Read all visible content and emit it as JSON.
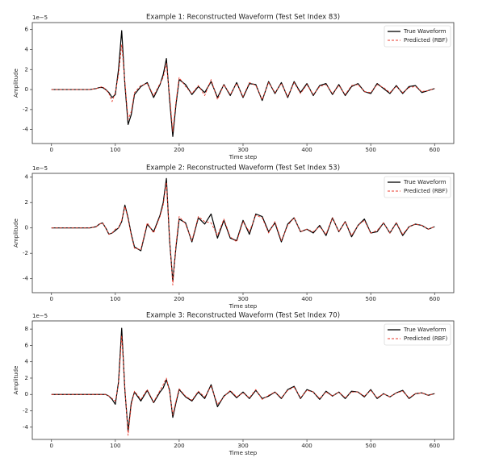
{
  "chart_data": [
    {
      "type": "line",
      "title": "Example 1: Reconstructed Waveform (Test Set Index 83)",
      "x_label": "Time step",
      "y_label": "Amplitude",
      "y_offset_label": "1e−5",
      "legend": "upper right",
      "x": [
        0,
        20,
        40,
        60,
        70,
        75,
        80,
        85,
        90,
        95,
        100,
        105,
        110,
        115,
        120,
        125,
        130,
        140,
        150,
        160,
        170,
        175,
        180,
        185,
        190,
        195,
        200,
        210,
        220,
        230,
        240,
        250,
        260,
        270,
        280,
        290,
        300,
        310,
        320,
        330,
        340,
        350,
        360,
        370,
        380,
        390,
        400,
        410,
        420,
        430,
        440,
        450,
        460,
        470,
        480,
        490,
        500,
        510,
        520,
        530,
        540,
        550,
        560,
        570,
        580,
        590,
        600
      ],
      "xlim": [
        -30,
        630
      ],
      "xticks": [
        0,
        100,
        200,
        300,
        400,
        500,
        600
      ],
      "ylim": [
        -5.4,
        6.7
      ],
      "yticks": [
        -4,
        -2,
        0,
        2,
        4,
        6
      ],
      "series": [
        {
          "name": "True Waveform",
          "color": "#000000",
          "dash": false,
          "values": [
            0,
            0,
            0,
            0,
            0.1,
            0.2,
            0.2,
            0,
            -0.3,
            -0.8,
            -0.5,
            2,
            5.9,
            0.5,
            -3.5,
            -2.5,
            -0.5,
            0.3,
            0.7,
            -0.8,
            0.5,
            1.5,
            3.1,
            -1,
            -4.7,
            -1.5,
            1,
            0.5,
            -0.5,
            0.3,
            -0.3,
            0.8,
            -0.8,
            0.5,
            -0.6,
            0.7,
            -0.8,
            0.6,
            0.5,
            -1.1,
            0.8,
            -0.4,
            0.7,
            -0.8,
            0.8,
            -0.3,
            0.6,
            -0.6,
            0.4,
            0.6,
            -0.5,
            0.5,
            -0.6,
            0.3,
            0.6,
            -0.2,
            -0.4,
            0.6,
            0.1,
            -0.4,
            0.4,
            -0.4,
            0.3,
            0.4,
            -0.3,
            -0.1,
            0.1
          ]
        },
        {
          "name": "Predicted (RBF)",
          "color": "#e8392b",
          "dash": true,
          "values": [
            0,
            0,
            0,
            0,
            0.1,
            0.2,
            0.3,
            0,
            -0.4,
            -1.2,
            -0.3,
            1.5,
            4.5,
            0.8,
            -3,
            -2.2,
            -0.3,
            0.4,
            0.6,
            -0.6,
            0.6,
            1.2,
            2.6,
            -0.6,
            -4.2,
            -1.2,
            1.2,
            0.3,
            -0.4,
            0.4,
            -0.6,
            1,
            -1,
            0.5,
            -0.5,
            0.6,
            -0.7,
            0.7,
            0.4,
            -1,
            0.7,
            -0.3,
            0.6,
            -0.7,
            0.7,
            -0.4,
            0.5,
            -0.5,
            0.3,
            0.5,
            -0.4,
            0.4,
            -0.5,
            0.4,
            0.5,
            -0.2,
            -0.3,
            0.5,
            0.2,
            -0.3,
            0.3,
            -0.3,
            0.2,
            0.3,
            -0.2,
            -0.1,
            0.1
          ]
        }
      ]
    },
    {
      "type": "line",
      "title": "Example 2: Reconstructed Waveform (Test Set Index 53)",
      "x_label": "Time step",
      "y_label": "Amplitude",
      "y_offset_label": "1e−5",
      "legend": "upper right",
      "x": [
        0,
        20,
        40,
        60,
        70,
        75,
        80,
        85,
        90,
        95,
        100,
        105,
        110,
        115,
        120,
        125,
        130,
        140,
        150,
        160,
        170,
        175,
        180,
        185,
        190,
        195,
        200,
        210,
        220,
        230,
        240,
        250,
        260,
        270,
        280,
        290,
        300,
        310,
        320,
        330,
        340,
        350,
        360,
        370,
        380,
        390,
        400,
        410,
        420,
        430,
        440,
        450,
        460,
        470,
        480,
        490,
        500,
        510,
        520,
        530,
        540,
        550,
        560,
        570,
        580,
        590,
        600
      ],
      "xlim": [
        -30,
        630
      ],
      "xticks": [
        0,
        100,
        200,
        300,
        400,
        500,
        600
      ],
      "ylim": [
        -5.1,
        4.3
      ],
      "yticks": [
        -4,
        -2,
        0,
        2,
        4
      ],
      "series": [
        {
          "name": "True Waveform",
          "color": "#000000",
          "dash": false,
          "values": [
            0,
            0,
            0,
            0,
            0.1,
            0.3,
            0.4,
            0,
            -0.5,
            -0.4,
            -0.2,
            0,
            0.5,
            1.8,
            0.8,
            -0.5,
            -1.5,
            -1.8,
            0.3,
            -0.3,
            1,
            2,
            3.9,
            -1,
            -4.2,
            -1.5,
            0.7,
            0.4,
            -1.1,
            0.8,
            0.3,
            1.1,
            -0.8,
            0.6,
            -0.8,
            -1,
            0.6,
            -0.5,
            1.1,
            0.9,
            -0.3,
            0.4,
            -1.1,
            0.3,
            0.8,
            -0.3,
            -0.1,
            -0.4,
            0.2,
            -0.6,
            0.8,
            -0.3,
            0.5,
            -0.7,
            0.2,
            0.7,
            -0.4,
            -0.3,
            0.4,
            -0.4,
            0.4,
            -0.6,
            0.1,
            0.3,
            0.2,
            -0.1,
            0.1
          ]
        },
        {
          "name": "Predicted (RBF)",
          "color": "#e8392b",
          "dash": true,
          "values": [
            0,
            0,
            0,
            0,
            0.1,
            0.3,
            0.4,
            0,
            -0.5,
            -0.4,
            -0.1,
            0,
            0.6,
            1.7,
            0.7,
            -0.6,
            -1.6,
            -1.7,
            0.4,
            -0.4,
            0.9,
            1.8,
            3.6,
            -0.8,
            -4.5,
            -1.3,
            0.9,
            0.3,
            -1,
            0.9,
            0.5,
            0.4,
            -0.6,
            0.7,
            -0.7,
            -1.1,
            0.5,
            -0.3,
            1,
            0.8,
            -0.4,
            0.5,
            -1,
            0.2,
            0.8,
            -0.3,
            -0.1,
            -0.3,
            0.1,
            -0.5,
            0.8,
            -0.3,
            0.5,
            -0.6,
            0.2,
            0.6,
            -0.4,
            -0.2,
            0.4,
            -0.4,
            0.4,
            -0.5,
            0.1,
            0.3,
            0.2,
            -0.1,
            0.1
          ]
        }
      ]
    },
    {
      "type": "line",
      "title": "Example 3: Reconstructed Waveform (Test Set Index 70)",
      "x_label": "Time step",
      "y_label": "Amplitude",
      "y_offset_label": "1e−5",
      "legend": "upper right",
      "x": [
        0,
        20,
        40,
        60,
        70,
        75,
        80,
        85,
        90,
        95,
        100,
        105,
        110,
        115,
        120,
        125,
        130,
        140,
        150,
        160,
        170,
        175,
        180,
        185,
        190,
        195,
        200,
        210,
        220,
        230,
        240,
        250,
        260,
        270,
        280,
        290,
        300,
        310,
        320,
        330,
        340,
        350,
        360,
        370,
        380,
        390,
        400,
        410,
        420,
        430,
        440,
        450,
        460,
        470,
        480,
        490,
        500,
        510,
        520,
        530,
        540,
        550,
        560,
        570,
        580,
        590,
        600
      ],
      "xlim": [
        -30,
        630
      ],
      "xticks": [
        0,
        100,
        200,
        300,
        400,
        500,
        600
      ],
      "ylim": [
        -5.5,
        9.0
      ],
      "yticks": [
        -4,
        -2,
        0,
        2,
        4,
        6,
        8
      ],
      "series": [
        {
          "name": "True Waveform",
          "color": "#000000",
          "dash": false,
          "values": [
            0,
            0,
            0,
            0,
            0,
            0,
            0,
            0,
            -0.2,
            -0.6,
            -1.2,
            1.5,
            8.1,
            0.5,
            -4.5,
            -1,
            0.3,
            -0.8,
            0.5,
            -1,
            0.3,
            0.8,
            1.8,
            0.5,
            -2.8,
            -1,
            0.6,
            -0.3,
            -0.8,
            0.3,
            -0.5,
            1.2,
            -1.5,
            -0.2,
            0.4,
            -0.4,
            0.3,
            -0.5,
            0.5,
            -0.5,
            -0.2,
            0.3,
            -0.5,
            0.6,
            1,
            -0.5,
            0.6,
            0.3,
            -0.6,
            0.4,
            -0.2,
            0.3,
            -0.5,
            0.4,
            0.3,
            -0.3,
            0.6,
            -0.5,
            0.1,
            -0.3,
            0.2,
            0.5,
            -0.5,
            0.1,
            0.2,
            -0.1,
            0.1
          ]
        },
        {
          "name": "Predicted (RBF)",
          "color": "#e8392b",
          "dash": true,
          "values": [
            0,
            0,
            0,
            0,
            0,
            0,
            0,
            0,
            -0.2,
            -0.5,
            -0.8,
            1.2,
            7.2,
            0.8,
            -5,
            -1.3,
            0.4,
            -0.6,
            0.6,
            -0.9,
            0.5,
            1.2,
            2,
            0.3,
            -2.5,
            -0.8,
            0.7,
            -0.2,
            -0.7,
            0.4,
            -0.3,
            1,
            -1.2,
            -0.3,
            0.5,
            -0.3,
            0.2,
            -0.4,
            0.6,
            -0.6,
            -0.1,
            0.3,
            -0.4,
            0.5,
            0.9,
            -0.4,
            0.5,
            0.3,
            -0.5,
            0.3,
            -0.2,
            0.3,
            -0.4,
            0.3,
            0.3,
            -0.2,
            0.5,
            -0.4,
            0.1,
            -0.3,
            0.2,
            0.4,
            -0.4,
            0.1,
            0.2,
            -0.1,
            0.1
          ]
        }
      ]
    }
  ]
}
